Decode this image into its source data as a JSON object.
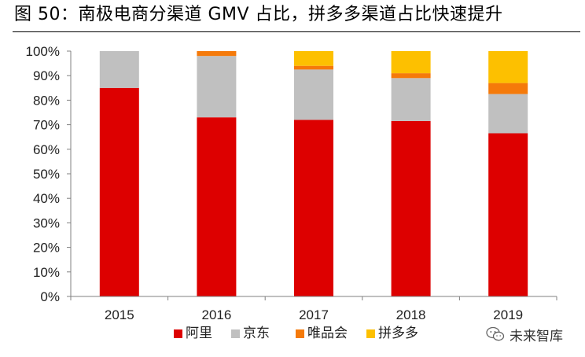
{
  "figure_title": "图 50：南极电商分渠道 GMV 占比，拼多多渠道占比快速提升",
  "watermark": "未来智库",
  "chart_data": {
    "type": "bar",
    "stacked": true,
    "title": "图 50：南极电商分渠道 GMV 占比，拼多多渠道占比快速提升",
    "categories": [
      "2015",
      "2016",
      "2017",
      "2018",
      "2019"
    ],
    "series": [
      {
        "name": "阿里",
        "color": "#dd0000",
        "values": [
          85,
          73,
          72,
          71.5,
          66.5
        ]
      },
      {
        "name": "京东",
        "color": "#c0c0c0",
        "values": [
          15,
          25,
          20.5,
          17.5,
          16
        ]
      },
      {
        "name": "唯品会",
        "color": "#f57a0a",
        "values": [
          0,
          2,
          1.5,
          2,
          4.5
        ]
      },
      {
        "name": "拼多多",
        "color": "#fdc000",
        "values": [
          0,
          0,
          6,
          9,
          13
        ]
      }
    ],
    "ylim": [
      0,
      100
    ],
    "yticks": [
      0,
      10,
      20,
      30,
      40,
      50,
      60,
      70,
      80,
      90,
      100
    ],
    "ytick_labels": [
      "0%",
      "10%",
      "20%",
      "30%",
      "40%",
      "50%",
      "60%",
      "70%",
      "80%",
      "90%",
      "100%"
    ],
    "xlabel": "",
    "ylabel": "",
    "grid": false,
    "legend_position": "bottom"
  }
}
